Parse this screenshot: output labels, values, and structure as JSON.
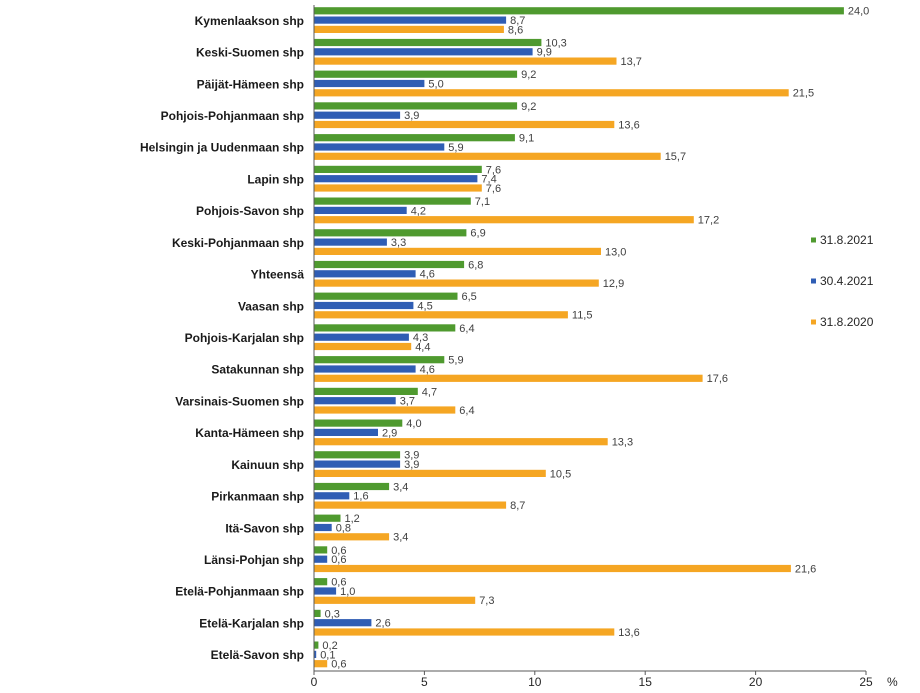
{
  "chart_data": {
    "type": "bar",
    "orientation": "horizontal",
    "categories": [
      "Kymenlaakson shp",
      "Keski-Suomen shp",
      "Päijät-Hämeen shp",
      "Pohjois-Pohjanmaan shp",
      "Helsingin ja Uudenmaan shp",
      "Lapin shp",
      "Pohjois-Savon shp",
      "Keski-Pohjanmaan shp",
      "Yhteensä",
      "Vaasan shp",
      "Pohjois-Karjalan shp",
      "Satakunnan shp",
      "Varsinais-Suomen shp",
      "Kanta-Hämeen shp",
      "Kainuun shp",
      "Pirkanmaan shp",
      "Itä-Savon shp",
      "Länsi-Pohjan shp",
      "Etelä-Pohjanmaan shp",
      "Etelä-Karjalan shp",
      "Etelä-Savon shp"
    ],
    "series": [
      {
        "name": "31.8.2021",
        "color": "#4f9a2f",
        "values": [
          24.0,
          10.3,
          9.2,
          9.2,
          9.1,
          7.6,
          7.1,
          6.9,
          6.8,
          6.5,
          6.4,
          5.9,
          4.7,
          4.0,
          3.9,
          3.4,
          1.2,
          0.6,
          0.6,
          0.3,
          0.2
        ],
        "labels": [
          "24,0",
          "10,3",
          "9,2",
          "9,2",
          "9,1",
          "7,6",
          "7,1",
          "6,9",
          "6,8",
          "6,5",
          "6,4",
          "5,9",
          "4,7",
          "4,0",
          "3,9",
          "3,4",
          "1,2",
          "0,6",
          "0,6",
          "0,3",
          "0,2"
        ]
      },
      {
        "name": "30.4.2021",
        "color": "#2f5db4",
        "values": [
          8.7,
          9.9,
          5.0,
          3.9,
          5.9,
          7.4,
          4.2,
          3.3,
          4.6,
          4.5,
          4.3,
          4.6,
          3.7,
          2.9,
          3.9,
          1.6,
          0.8,
          0.6,
          1.0,
          2.6,
          0.1
        ],
        "labels": [
          "8,7",
          "9,9",
          "5,0",
          "3,9",
          "5,9",
          "7,4",
          "4,2",
          "3,3",
          "4,6",
          "4,5",
          "4,3",
          "4,6",
          "3,7",
          "2,9",
          "3,9",
          "1,6",
          "0,8",
          "0,6",
          "1,0",
          "2,6",
          "0,1"
        ]
      },
      {
        "name": "31.8.2020",
        "color": "#f5a623",
        "values": [
          8.6,
          13.7,
          21.5,
          13.6,
          15.7,
          7.6,
          17.2,
          13.0,
          12.9,
          11.5,
          4.4,
          17.6,
          6.4,
          13.3,
          10.5,
          8.7,
          3.4,
          21.6,
          7.3,
          13.6,
          0.6
        ],
        "labels": [
          "8,6",
          "13,7",
          "21,5",
          "13,6",
          "15,7",
          "7,6",
          "17,2",
          "13,0",
          "12,9",
          "11,5",
          "4,4",
          "17,6",
          "6,4",
          "13,3",
          "10,5",
          "8,7",
          "3,4",
          "21,6",
          "7,3",
          "13,6",
          "0,6"
        ]
      }
    ],
    "xlim": [
      0,
      25
    ],
    "xticks": [
      0,
      5,
      10,
      15,
      20,
      25
    ],
    "xtick_labels": [
      "0",
      "5",
      "10",
      "15",
      "20",
      "25"
    ],
    "xunit": "%",
    "grid": false,
    "legend": "right",
    "title": "",
    "xlabel": "",
    "ylabel": ""
  }
}
